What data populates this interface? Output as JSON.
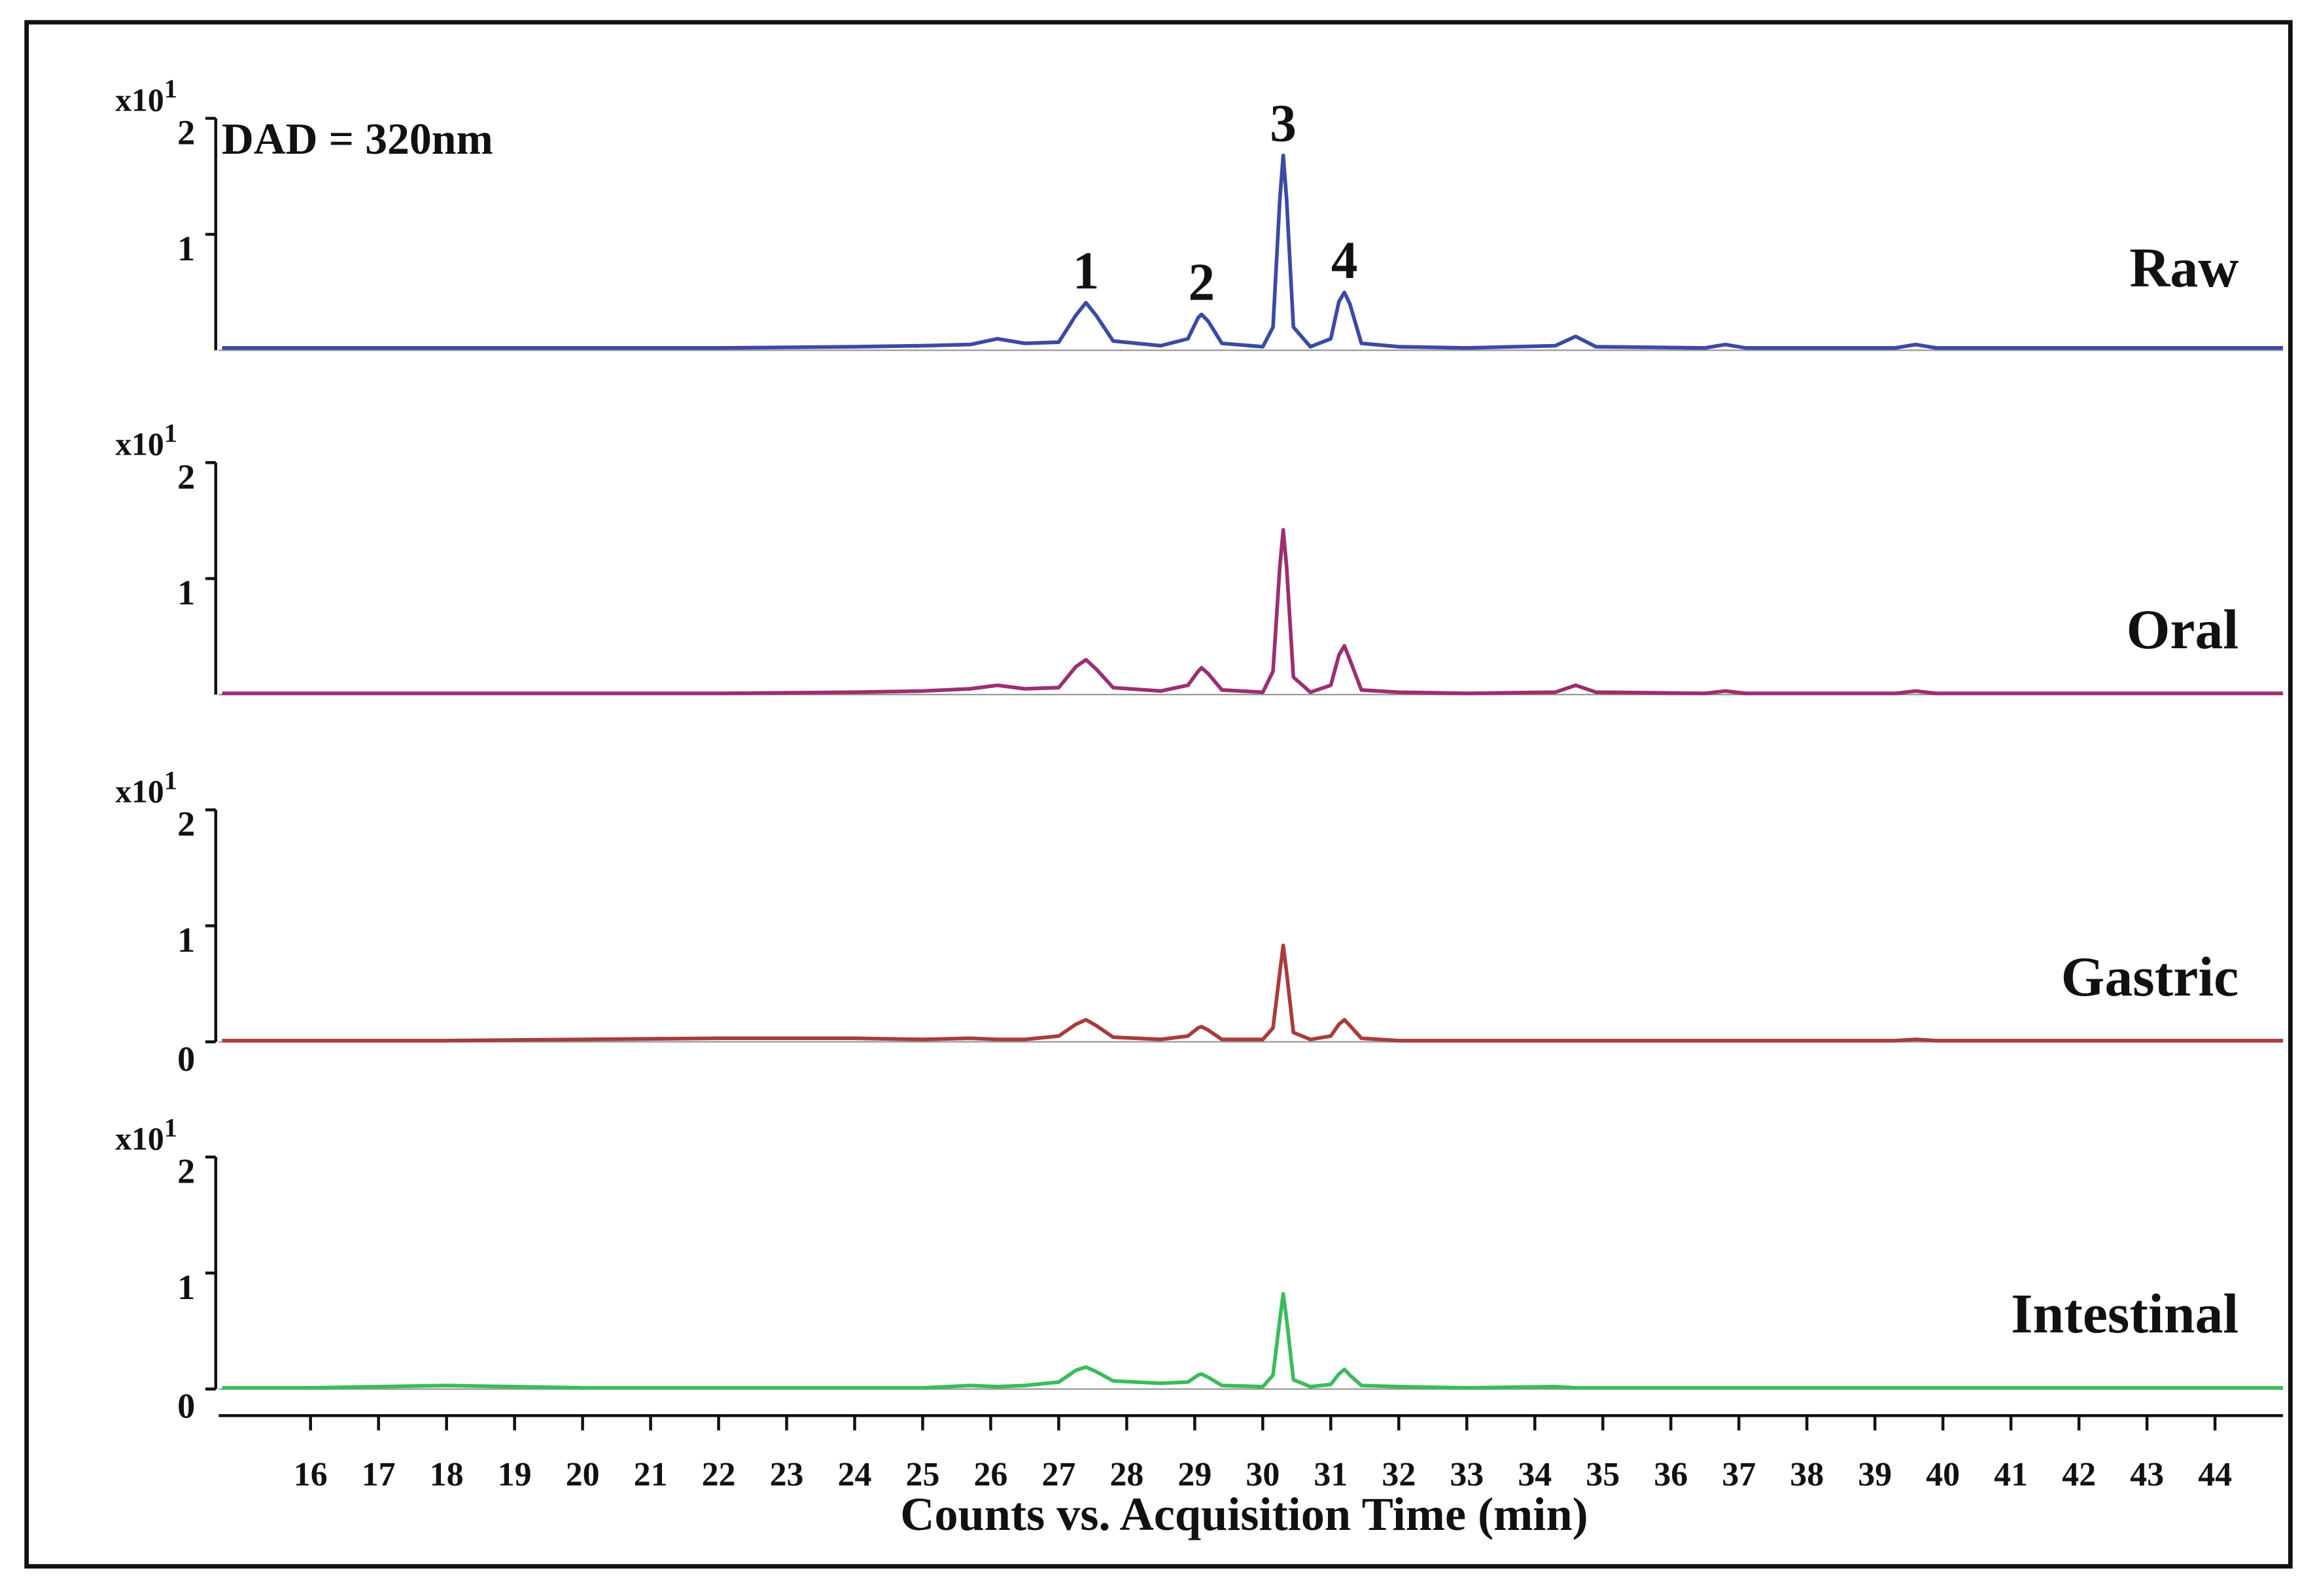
{
  "chart_data": [
    {
      "type": "line",
      "series_label": "Raw",
      "annotation": "DAD = 320nm",
      "y_scale": {
        "base": "x10",
        "exponent": "1"
      },
      "color": "#3b4aa3",
      "xlim": [
        14.65,
        45
      ],
      "ylim": [
        0,
        2
      ],
      "yticks": [
        1,
        2
      ],
      "peaks": [
        {
          "text": "1",
          "x": 27.4
        },
        {
          "text": "2",
          "x": 29.1
        },
        {
          "text": "3",
          "x": 30.3
        },
        {
          "text": "4",
          "x": 31.2
        }
      ],
      "x": [
        14.7,
        16,
        18,
        20,
        22,
        24,
        25,
        25.7,
        26.1,
        26.5,
        27.0,
        27.25,
        27.4,
        27.55,
        27.8,
        28.5,
        28.9,
        29.05,
        29.1,
        29.2,
        29.4,
        30.0,
        30.15,
        30.25,
        30.3,
        30.35,
        30.45,
        30.7,
        31.0,
        31.12,
        31.2,
        31.28,
        31.45,
        32,
        33,
        34.3,
        34.6,
        34.9,
        36.5,
        36.8,
        37.1,
        39.3,
        39.6,
        39.9,
        42,
        45
      ],
      "values": [
        0.02,
        0.02,
        0.02,
        0.02,
        0.02,
        0.03,
        0.04,
        0.05,
        0.1,
        0.06,
        0.07,
        0.3,
        0.41,
        0.3,
        0.08,
        0.04,
        0.1,
        0.28,
        0.31,
        0.25,
        0.06,
        0.03,
        0.2,
        1.3,
        1.68,
        1.3,
        0.2,
        0.03,
        0.1,
        0.42,
        0.5,
        0.4,
        0.06,
        0.03,
        0.02,
        0.04,
        0.12,
        0.03,
        0.02,
        0.05,
        0.02,
        0.02,
        0.05,
        0.02,
        0.02,
        0.02
      ]
    },
    {
      "type": "line",
      "series_label": "Oral",
      "y_scale": {
        "base": "x10",
        "exponent": "1"
      },
      "color": "#9a2f72",
      "xlim": [
        14.65,
        45
      ],
      "ylim": [
        0,
        2
      ],
      "yticks": [
        1,
        2
      ],
      "x": [
        14.7,
        16,
        18,
        20,
        22,
        24,
        25,
        25.7,
        26.1,
        26.5,
        27.0,
        27.25,
        27.4,
        27.55,
        27.8,
        28.5,
        28.9,
        29.05,
        29.1,
        29.2,
        29.4,
        30.0,
        30.15,
        30.25,
        30.3,
        30.35,
        30.45,
        30.7,
        31.0,
        31.12,
        31.2,
        31.28,
        31.45,
        32,
        33,
        34.3,
        34.6,
        34.9,
        36.5,
        36.8,
        37.1,
        39.3,
        39.6,
        39.9,
        42,
        45
      ],
      "values": [
        0.01,
        0.01,
        0.01,
        0.01,
        0.01,
        0.02,
        0.03,
        0.05,
        0.08,
        0.05,
        0.06,
        0.24,
        0.3,
        0.22,
        0.06,
        0.03,
        0.08,
        0.2,
        0.23,
        0.18,
        0.04,
        0.02,
        0.2,
        1.1,
        1.42,
        1.1,
        0.15,
        0.02,
        0.08,
        0.34,
        0.42,
        0.3,
        0.04,
        0.02,
        0.01,
        0.02,
        0.08,
        0.02,
        0.01,
        0.03,
        0.01,
        0.01,
        0.03,
        0.01,
        0.01,
        0.01
      ]
    },
    {
      "type": "line",
      "series_label": "Gastric",
      "y_scale": {
        "base": "x10",
        "exponent": "1"
      },
      "color": "#a83c3c",
      "xlim": [
        14.65,
        45
      ],
      "ylim": [
        0,
        2
      ],
      "yticks": [
        0,
        1,
        2
      ],
      "x": [
        14.7,
        16,
        18,
        20,
        22,
        24,
        25,
        25.7,
        26.1,
        26.5,
        27.0,
        27.25,
        27.4,
        27.55,
        27.8,
        28.5,
        28.9,
        29.05,
        29.1,
        29.2,
        29.4,
        30.0,
        30.15,
        30.25,
        30.3,
        30.35,
        30.45,
        30.7,
        31.0,
        31.12,
        31.2,
        31.28,
        31.45,
        32,
        33,
        34.3,
        34.6,
        34.9,
        36.5,
        36.8,
        37.1,
        39.3,
        39.6,
        39.9,
        42,
        45
      ],
      "values": [
        0.01,
        0.01,
        0.01,
        0.02,
        0.03,
        0.03,
        0.02,
        0.03,
        0.02,
        0.02,
        0.05,
        0.15,
        0.19,
        0.14,
        0.04,
        0.02,
        0.05,
        0.12,
        0.13,
        0.1,
        0.02,
        0.02,
        0.12,
        0.6,
        0.83,
        0.6,
        0.08,
        0.02,
        0.05,
        0.15,
        0.19,
        0.14,
        0.03,
        0.01,
        0.01,
        0.01,
        0.01,
        0.01,
        0.01,
        0.01,
        0.01,
        0.01,
        0.02,
        0.01,
        0.01,
        0.01
      ]
    },
    {
      "type": "line",
      "series_label": "Intestinal",
      "y_scale": {
        "base": "x10",
        "exponent": "1"
      },
      "color": "#3cbb5c",
      "xlim": [
        14.65,
        45
      ],
      "ylim": [
        0,
        2
      ],
      "yticks": [
        0,
        1,
        2
      ],
      "xlabel": "Counts vs. Acquisition Time (min)",
      "xticks": [
        16,
        17,
        18,
        19,
        20,
        21,
        22,
        23,
        24,
        25,
        26,
        27,
        28,
        29,
        30,
        31,
        32,
        33,
        34,
        35,
        36,
        37,
        38,
        39,
        40,
        41,
        42,
        43,
        44
      ],
      "x": [
        14.7,
        16,
        18,
        20,
        22,
        24,
        25,
        25.7,
        26.1,
        26.5,
        27.0,
        27.25,
        27.4,
        27.55,
        27.8,
        28.5,
        28.9,
        29.05,
        29.1,
        29.2,
        29.4,
        30.0,
        30.15,
        30.25,
        30.3,
        30.35,
        30.45,
        30.7,
        31.0,
        31.12,
        31.2,
        31.28,
        31.45,
        32,
        33,
        34.3,
        34.6,
        34.9,
        36.5,
        36.8,
        37.1,
        39.3,
        39.6,
        39.9,
        42,
        45
      ],
      "values": [
        0.01,
        0.01,
        0.03,
        0.01,
        0.01,
        0.01,
        0.01,
        0.03,
        0.02,
        0.03,
        0.06,
        0.16,
        0.19,
        0.15,
        0.07,
        0.05,
        0.06,
        0.12,
        0.13,
        0.1,
        0.03,
        0.02,
        0.12,
        0.6,
        0.82,
        0.6,
        0.08,
        0.02,
        0.04,
        0.13,
        0.17,
        0.12,
        0.03,
        0.02,
        0.01,
        0.02,
        0.01,
        0.01,
        0.01,
        0.01,
        0.01,
        0.01,
        0.01,
        0.01,
        0.01,
        0.01
      ]
    }
  ]
}
